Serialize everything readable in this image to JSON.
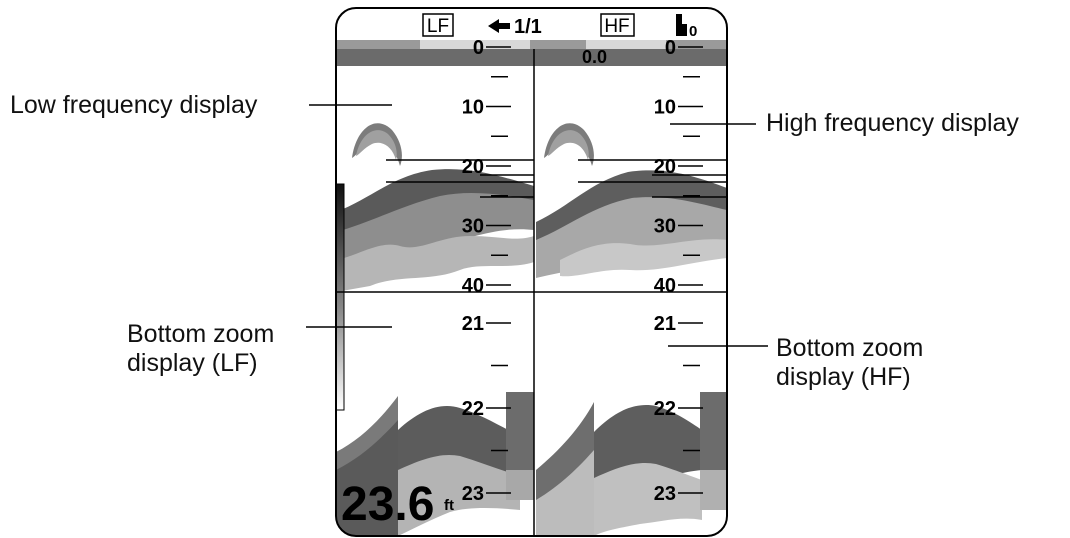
{
  "header": {
    "lf_label": "LF",
    "page_indicator": "1/1",
    "hf_label": "HF",
    "arrow_icon": "left-arrow-icon",
    "corner_icon": "stepped-bars-icon",
    "corner_value": "0"
  },
  "status_bar": {
    "draft_value": "0.0"
  },
  "scales": {
    "upper": [
      "0",
      "10",
      "20",
      "30",
      "40"
    ],
    "zoom": [
      "21",
      "22",
      "23"
    ]
  },
  "readout": {
    "depth_value": "23.6",
    "depth_unit": "ft"
  },
  "callouts": {
    "low_frequency": "Low frequency display",
    "high_frequency": "High frequency display",
    "zoom_lf_line1": "Bottom zoom",
    "zoom_lf_line2": "display (LF)",
    "zoom_hf_line1": "Bottom zoom",
    "zoom_hf_line2": "display (HF)"
  },
  "colors": {
    "frame": "#000000",
    "status_bar_dark": "#6b6b6b",
    "status_bar_light": "#c8c8c8",
    "echo_dark": "#5a5a5a",
    "echo_mid": "#8c8c8c",
    "echo_light": "#c4c4c4"
  }
}
